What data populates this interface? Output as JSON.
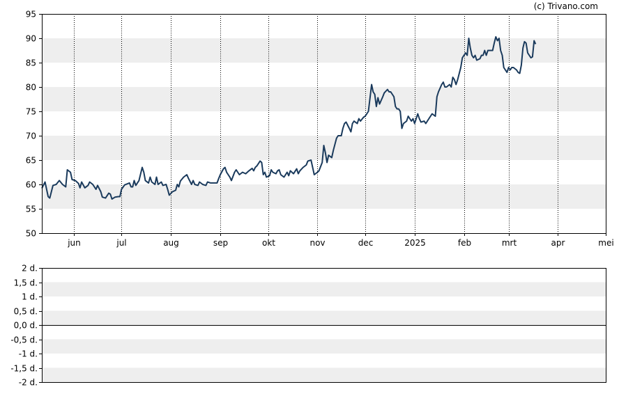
{
  "copyright": "(c) Trivano.com",
  "colors": {
    "line": "#1a3a5c",
    "band": "#eeeeee",
    "grid": "#000000",
    "frame": "#000000"
  },
  "chart_data": [
    {
      "type": "line",
      "title": "",
      "xlabel": "",
      "ylabel": "",
      "ylim": [
        50,
        95
      ],
      "yticks": [
        50,
        55,
        60,
        65,
        70,
        75,
        80,
        85,
        90,
        95
      ],
      "grid": "vertical-dotted-at-month-starts, alternating-horizontal-bands",
      "month_ticks": [
        {
          "label": "jun",
          "day": 20
        },
        {
          "label": "jul",
          "day": 50
        },
        {
          "label": "aug",
          "day": 81
        },
        {
          "label": "sep",
          "day": 112
        },
        {
          "label": "okt",
          "day": 142
        },
        {
          "label": "nov",
          "day": 173
        },
        {
          "label": "dec",
          "day": 203
        },
        {
          "label": "2025",
          "day": 234
        },
        {
          "label": "feb",
          "day": 265
        },
        {
          "label": "mrt",
          "day": 293
        },
        {
          "label": "apr",
          "day": 324
        },
        {
          "label": "mei",
          "day": 354
        }
      ],
      "x_range_days": [
        0,
        354
      ],
      "series": [
        {
          "values": [
            [
              0,
              59.2
            ],
            [
              2,
              60.5
            ],
            [
              4,
              57.5
            ],
            [
              5,
              57.2
            ],
            [
              7,
              59.8
            ],
            [
              9,
              60.0
            ],
            [
              11,
              60.8
            ],
            [
              13,
              60.0
            ],
            [
              15,
              59.5
            ],
            [
              16,
              63.0
            ],
            [
              18,
              62.5
            ],
            [
              19,
              61.0
            ],
            [
              21,
              60.8
            ],
            [
              23,
              60.2
            ],
            [
              24,
              59.3
            ],
            [
              25,
              60.5
            ],
            [
              27,
              59.3
            ],
            [
              29,
              59.8
            ],
            [
              30,
              60.5
            ],
            [
              32,
              60.0
            ],
            [
              34,
              59.0
            ],
            [
              35,
              59.8
            ],
            [
              37,
              58.5
            ],
            [
              38,
              57.4
            ],
            [
              40,
              57.2
            ],
            [
              42,
              58.2
            ],
            [
              43,
              58.0
            ],
            [
              44,
              57.0
            ],
            [
              46,
              57.4
            ],
            [
              48,
              57.5
            ],
            [
              49,
              57.5
            ],
            [
              50,
              59.0
            ],
            [
              52,
              59.9
            ],
            [
              55,
              60.3
            ],
            [
              56,
              59.5
            ],
            [
              57,
              59.5
            ],
            [
              58,
              60.8
            ],
            [
              59,
              59.8
            ],
            [
              61,
              60.8
            ],
            [
              63,
              63.5
            ],
            [
              64,
              62.5
            ],
            [
              65,
              60.8
            ],
            [
              67,
              60.3
            ],
            [
              68,
              61.5
            ],
            [
              69,
              60.5
            ],
            [
              71,
              60.0
            ],
            [
              72,
              61.5
            ],
            [
              73,
              60.0
            ],
            [
              75,
              60.5
            ],
            [
              76,
              59.8
            ],
            [
              78,
              60.0
            ],
            [
              79,
              59.0
            ],
            [
              80,
              57.8
            ],
            [
              82,
              58.5
            ],
            [
              84,
              58.8
            ],
            [
              85,
              60.0
            ],
            [
              86,
              59.5
            ],
            [
              87,
              60.7
            ],
            [
              89,
              61.5
            ],
            [
              91,
              62.0
            ],
            [
              92,
              61.3
            ],
            [
              94,
              60.0
            ],
            [
              95,
              60.8
            ],
            [
              96,
              60.0
            ],
            [
              98,
              59.8
            ],
            [
              99,
              60.5
            ],
            [
              101,
              60.0
            ],
            [
              103,
              59.8
            ],
            [
              104,
              60.5
            ],
            [
              106,
              60.3
            ],
            [
              108,
              60.3
            ],
            [
              110,
              60.3
            ],
            [
              111,
              61.2
            ],
            [
              112,
              62.0
            ],
            [
              114,
              63.2
            ],
            [
              115,
              63.5
            ],
            [
              116,
              62.5
            ],
            [
              118,
              61.5
            ],
            [
              119,
              60.8
            ],
            [
              121,
              62.5
            ],
            [
              122,
              63.0
            ],
            [
              124,
              62.0
            ],
            [
              126,
              62.5
            ],
            [
              128,
              62.2
            ],
            [
              130,
              62.8
            ],
            [
              132,
              63.3
            ],
            [
              133,
              62.8
            ],
            [
              134,
              63.5
            ],
            [
              135,
              63.8
            ],
            [
              137,
              64.8
            ],
            [
              138,
              64.5
            ],
            [
              139,
              62.0
            ],
            [
              140,
              62.5
            ],
            [
              141,
              61.5
            ],
            [
              143,
              61.8
            ],
            [
              144,
              63.0
            ],
            [
              145,
              62.5
            ],
            [
              147,
              62.2
            ],
            [
              148,
              62.8
            ],
            [
              149,
              63.0
            ],
            [
              150,
              62.0
            ],
            [
              152,
              61.5
            ],
            [
              154,
              62.5
            ],
            [
              155,
              61.8
            ],
            [
              156,
              62.8
            ],
            [
              158,
              62.2
            ],
            [
              160,
              63.2
            ],
            [
              161,
              62.2
            ],
            [
              162,
              62.8
            ],
            [
              164,
              63.5
            ],
            [
              166,
              64.0
            ],
            [
              167,
              64.8
            ],
            [
              169,
              65.0
            ],
            [
              170,
              63.5
            ],
            [
              171,
              62.0
            ],
            [
              173,
              62.5
            ],
            [
              174,
              62.8
            ],
            [
              176,
              64.5
            ],
            [
              177,
              68.0
            ],
            [
              178,
              66.5
            ],
            [
              179,
              64.5
            ],
            [
              180,
              66.0
            ],
            [
              182,
              65.5
            ],
            [
              183,
              67.0
            ],
            [
              185,
              69.5
            ],
            [
              186,
              70.0
            ],
            [
              188,
              70.0
            ],
            [
              189,
              71.5
            ],
            [
              190,
              72.5
            ],
            [
              191,
              72.8
            ],
            [
              193,
              71.5
            ],
            [
              194,
              70.8
            ],
            [
              195,
              72.5
            ],
            [
              196,
              73.0
            ],
            [
              198,
              72.5
            ],
            [
              199,
              73.5
            ],
            [
              200,
              73.0
            ],
            [
              202,
              73.8
            ],
            [
              203,
              74.0
            ],
            [
              205,
              75.0
            ],
            [
              207,
              80.5
            ],
            [
              208,
              79.0
            ],
            [
              209,
              78.5
            ],
            [
              210,
              76.0
            ],
            [
              211,
              77.8
            ],
            [
              212,
              76.5
            ],
            [
              214,
              78.0
            ],
            [
              215,
              78.8
            ],
            [
              217,
              79.5
            ],
            [
              218,
              79.0
            ],
            [
              219,
              79.0
            ],
            [
              221,
              78.0
            ],
            [
              222,
              76.0
            ],
            [
              223,
              75.5
            ],
            [
              224,
              75.5
            ],
            [
              225,
              75.0
            ],
            [
              226,
              71.5
            ],
            [
              227,
              72.5
            ],
            [
              229,
              73.0
            ],
            [
              230,
              74.0
            ],
            [
              232,
              73.0
            ],
            [
              233,
              73.5
            ],
            [
              234,
              72.5
            ],
            [
              236,
              74.5
            ],
            [
              237,
              73.5
            ],
            [
              238,
              72.8
            ],
            [
              240,
              73.0
            ],
            [
              241,
              72.5
            ],
            [
              243,
              73.5
            ],
            [
              244,
              74.0
            ],
            [
              245,
              74.5
            ],
            [
              247,
              74.0
            ],
            [
              248,
              78.0
            ],
            [
              249,
              79.0
            ],
            [
              251,
              80.5
            ],
            [
              252,
              81.0
            ],
            [
              253,
              80.0
            ],
            [
              254,
              80.0
            ],
            [
              256,
              80.5
            ],
            [
              257,
              80.0
            ],
            [
              258,
              82.0
            ],
            [
              259,
              81.5
            ],
            [
              260,
              80.5
            ],
            [
              261,
              81.5
            ],
            [
              263,
              84.0
            ],
            [
              264,
              86.0
            ],
            [
              266,
              87.0
            ],
            [
              267,
              86.5
            ],
            [
              268,
              90.0
            ],
            [
              269,
              88.0
            ],
            [
              270,
              86.5
            ],
            [
              271,
              86.0
            ],
            [
              272,
              86.5
            ],
            [
              273,
              85.5
            ],
            [
              275,
              85.8
            ],
            [
              276,
              86.5
            ],
            [
              277,
              86.5
            ],
            [
              278,
              87.5
            ],
            [
              279,
              86.5
            ],
            [
              280,
              87.5
            ],
            [
              281,
              87.5
            ],
            [
              283,
              87.5
            ],
            [
              284,
              89.0
            ],
            [
              285,
              90.3
            ],
            [
              286,
              89.5
            ],
            [
              287,
              90.0
            ],
            [
              288,
              87.5
            ],
            [
              289,
              86.5
            ],
            [
              290,
              84.0
            ],
            [
              291,
              83.5
            ],
            [
              292,
              83.0
            ],
            [
              293,
              84.0
            ],
            [
              294,
              83.5
            ],
            [
              295,
              84.0
            ],
            [
              296,
              84.0
            ],
            [
              298,
              83.5
            ],
            [
              299,
              83.0
            ],
            [
              300,
              82.8
            ],
            [
              301,
              84.5
            ],
            [
              302,
              88.0
            ],
            [
              303,
              89.3
            ],
            [
              304,
              89.0
            ],
            [
              305,
              87.0
            ],
            [
              306,
              86.5
            ],
            [
              307,
              86.0
            ],
            [
              308,
              86.2
            ],
            [
              309,
              89.5
            ],
            [
              310,
              88.8
            ]
          ]
        }
      ]
    },
    {
      "type": "line",
      "title": "",
      "xlabel": "",
      "ylabel": "",
      "ylim": [
        -2,
        2
      ],
      "yticks": [
        "-2 d.",
        "-1,5 d.",
        "-1 d.",
        "-0,5 d.",
        "0,0 d.",
        "0,5 d.",
        "1 d.",
        "1,5 d.",
        "2 d."
      ],
      "grid": "alternating-horizontal-bands, solid zero line",
      "series": []
    }
  ]
}
